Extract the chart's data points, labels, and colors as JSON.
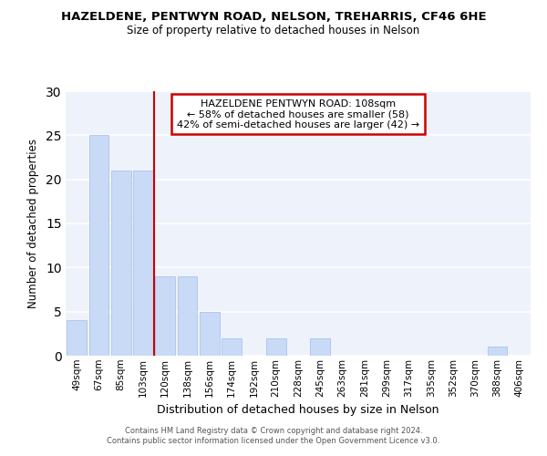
{
  "title": "HAZELDENE, PENTWYN ROAD, NELSON, TREHARRIS, CF46 6HE",
  "subtitle": "Size of property relative to detached houses in Nelson",
  "xlabel": "Distribution of detached houses by size in Nelson",
  "ylabel": "Number of detached properties",
  "bar_color": "#c8daf5",
  "bar_edge_color": "#aac4ee",
  "bin_labels": [
    "49sqm",
    "67sqm",
    "85sqm",
    "103sqm",
    "120sqm",
    "138sqm",
    "156sqm",
    "174sqm",
    "192sqm",
    "210sqm",
    "228sqm",
    "245sqm",
    "263sqm",
    "281sqm",
    "299sqm",
    "317sqm",
    "335sqm",
    "352sqm",
    "370sqm",
    "388sqm",
    "406sqm"
  ],
  "bar_values": [
    4,
    25,
    21,
    21,
    9,
    9,
    5,
    2,
    0,
    2,
    0,
    2,
    0,
    0,
    0,
    0,
    0,
    0,
    0,
    1,
    0
  ],
  "ylim": [
    0,
    30
  ],
  "yticks": [
    0,
    5,
    10,
    15,
    20,
    25,
    30
  ],
  "vline_x": 3.5,
  "vline_color": "#cc0000",
  "annotation_title": "HAZELDENE PENTWYN ROAD: 108sqm",
  "annotation_line1": "← 58% of detached houses are smaller (58)",
  "annotation_line2": "42% of semi-detached houses are larger (42) →",
  "annotation_box_color": "#ffffff",
  "annotation_box_edge": "#cc0000",
  "footer_line1": "Contains HM Land Registry data © Crown copyright and database right 2024.",
  "footer_line2": "Contains public sector information licensed under the Open Government Licence v3.0.",
  "background_color": "#eef2fb",
  "grid_color": "#ffffff",
  "fig_bg_color": "#ffffff"
}
